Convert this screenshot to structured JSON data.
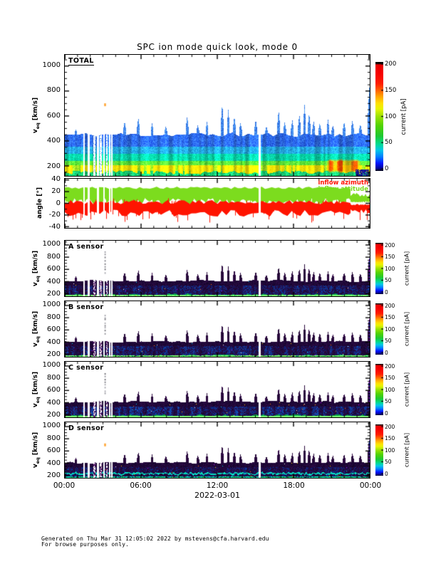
{
  "page": {
    "footer_line1": "Generated on Thu Mar 31 12:05:02 2022 by mstevens@cfa.harvard.edu",
    "footer_line2": "For browse purposes only."
  },
  "chart_data": {
    "type": "heatmap",
    "title": "SPC ion mode quick look, mode 0",
    "x_axis": {
      "label": "2022-03-01",
      "major_ticks": [
        "00:00",
        "06:00",
        "12:00",
        "18:00",
        "00:00"
      ],
      "hours_range": [
        0,
        24
      ],
      "minor_tick_hours": 1
    },
    "colorbar": {
      "label": "current [pA]",
      "ticks": [
        0,
        50,
        100,
        150,
        200
      ],
      "range": [
        0,
        200
      ],
      "stops": [
        [
          0,
          "#000000"
        ],
        [
          0.02,
          "#000090"
        ],
        [
          0.07,
          "#0013FF"
        ],
        [
          0.13,
          "#0080FF"
        ],
        [
          0.19,
          "#00C8E8"
        ],
        [
          0.25,
          "#00DC8C"
        ],
        [
          0.32,
          "#1EC832"
        ],
        [
          0.42,
          "#55D400"
        ],
        [
          0.5,
          "#9BE300"
        ],
        [
          0.57,
          "#E8F500"
        ],
        [
          0.62,
          "#FFE100"
        ],
        [
          0.68,
          "#FFA800"
        ],
        [
          0.74,
          "#FF6000"
        ],
        [
          0.8,
          "#FF1E00"
        ],
        [
          0.9,
          "#F60000"
        ],
        [
          0.975,
          "#E80000"
        ],
        [
          0.985,
          "#000000"
        ],
        [
          1,
          "#000000"
        ]
      ]
    },
    "angle_legend": [
      {
        "label": "inflow azimuth",
        "color": "#FF1400"
      },
      {
        "label": "inflow attitude",
        "color": "#7CDC1E"
      }
    ],
    "gaps": [
      {
        "t0": 0.0595,
        "t1": 0.0635
      },
      {
        "t0": 0.0735,
        "t1": 0.0795
      },
      {
        "t0": 0.0925,
        "t1": 0.0985,
        "speckle": true
      },
      {
        "t0": 0.1035,
        "t1": 0.1105
      },
      {
        "t0": 0.1135,
        "t1": 0.1195,
        "speckle": true
      },
      {
        "t0": 0.1245,
        "t1": 0.1305
      },
      {
        "t0": 0.1335,
        "t1": 0.1398,
        "speckle": true
      },
      {
        "t0": 0.1432,
        "t1": 0.1478
      },
      {
        "t0": 0.1505,
        "t1": 0.1545
      },
      {
        "t0": 0.6345,
        "t1": 0.6425
      }
    ],
    "spikes": [
      {
        "t": 0.035,
        "v": 490
      },
      {
        "t": 0.195,
        "v": 560
      },
      {
        "t": 0.24,
        "v": 590
      },
      {
        "t": 0.285,
        "v": 540
      },
      {
        "t": 0.33,
        "v": 520
      },
      {
        "t": 0.4,
        "v": 600
      },
      {
        "t": 0.435,
        "v": 530
      },
      {
        "t": 0.465,
        "v": 555
      },
      {
        "t": 0.515,
        "v": 700
      },
      {
        "t": 0.535,
        "v": 650
      },
      {
        "t": 0.555,
        "v": 600
      },
      {
        "t": 0.575,
        "v": 545
      },
      {
        "t": 0.625,
        "v": 570
      },
      {
        "t": 0.66,
        "v": 520
      },
      {
        "t": 0.7,
        "v": 650
      },
      {
        "t": 0.72,
        "v": 555
      },
      {
        "t": 0.745,
        "v": 570
      },
      {
        "t": 0.768,
        "v": 615
      },
      {
        "t": 0.785,
        "v": 690
      },
      {
        "t": 0.8,
        "v": 625
      },
      {
        "t": 0.815,
        "v": 560
      },
      {
        "t": 0.835,
        "v": 545
      },
      {
        "t": 0.862,
        "v": 575
      },
      {
        "t": 0.878,
        "v": 525
      },
      {
        "t": 0.915,
        "v": 555
      },
      {
        "t": 0.942,
        "v": 565
      },
      {
        "t": 0.968,
        "v": 535
      },
      {
        "t": 0.997,
        "v": 820
      }
    ],
    "panels": [
      {
        "id": "total",
        "label": "TOTAL",
        "y_label": {
          "main": "v",
          "sub": "eq",
          "units": " [km/s]"
        },
        "y_ticks": [
          200,
          400,
          600,
          800,
          1000
        ],
        "y_minor_step": 50,
        "y_range": [
          120,
          1090
        ],
        "style": "total",
        "seed": 11,
        "band": {
          "top_v": 450
        },
        "hot_region": {
          "t0": 0.852,
          "t1": 0.975,
          "v0": 138,
          "v1": 262
        },
        "orange_dot": {
          "t": 0.1315,
          "v": 690
        }
      },
      {
        "id": "angle",
        "y_label": {
          "main": "angle [°]"
        },
        "y_ticks": [
          -40,
          -20,
          0,
          20,
          40
        ],
        "y_minor_step": 10,
        "y_range": [
          -42,
          42
        ],
        "style": "angle",
        "seed": 5
      },
      {
        "id": "a",
        "label": "A sensor",
        "y_label": {
          "main": "v",
          "sub": "eq",
          "units": " [km/s]"
        },
        "y_ticks": [
          200,
          400,
          600,
          800,
          1000
        ],
        "y_minor_step": 50,
        "y_range": [
          160,
          1070
        ],
        "style": "sensor",
        "seed": 21,
        "band": {
          "top_v": 412
        },
        "blue_amount": 0.75,
        "green_strength": 0.9,
        "cyan_line": false,
        "grey_dots": {
          "t": 0.1315,
          "v0": 560,
          "v1": 900
        }
      },
      {
        "id": "b",
        "label": "B sensor",
        "y_label": {
          "main": "v",
          "sub": "eq",
          "units": " [km/s]"
        },
        "y_ticks": [
          200,
          400,
          600,
          800,
          1000
        ],
        "y_minor_step": 50,
        "y_range": [
          160,
          1070
        ],
        "style": "sensor",
        "seed": 22,
        "band": {
          "top_v": 410
        },
        "blue_amount": 0.85,
        "green_strength": 0.75,
        "cyan_line": false,
        "grey_dots": {
          "t": 0.1315,
          "v0": 560,
          "v1": 860
        }
      },
      {
        "id": "c",
        "label": "C sensor",
        "y_label": {
          "main": "v",
          "sub": "eq",
          "units": " [km/s]"
        },
        "y_ticks": [
          200,
          400,
          600,
          800,
          1000
        ],
        "y_minor_step": 50,
        "y_range": [
          160,
          1070
        ],
        "style": "sensor",
        "seed": 23,
        "band": {
          "top_v": 412
        },
        "blue_amount": 1.0,
        "green_strength": 1.0,
        "cyan_line": false,
        "grey_dots": {
          "t": 0.1315,
          "v0": 560,
          "v1": 880
        }
      },
      {
        "id": "d",
        "label": "D sensor",
        "y_label": {
          "main": "v",
          "sub": "eq",
          "units": " [km/s]"
        },
        "y_ticks": [
          200,
          400,
          600,
          800,
          1000
        ],
        "y_minor_step": 50,
        "y_range": [
          160,
          1070
        ],
        "style": "sensor",
        "seed": 24,
        "band": {
          "top_v": 408
        },
        "blue_amount": 0.55,
        "green_strength": 0.55,
        "cyan_line": true,
        "orange_dot": {
          "t": 0.1315,
          "v": 700
        }
      }
    ]
  }
}
